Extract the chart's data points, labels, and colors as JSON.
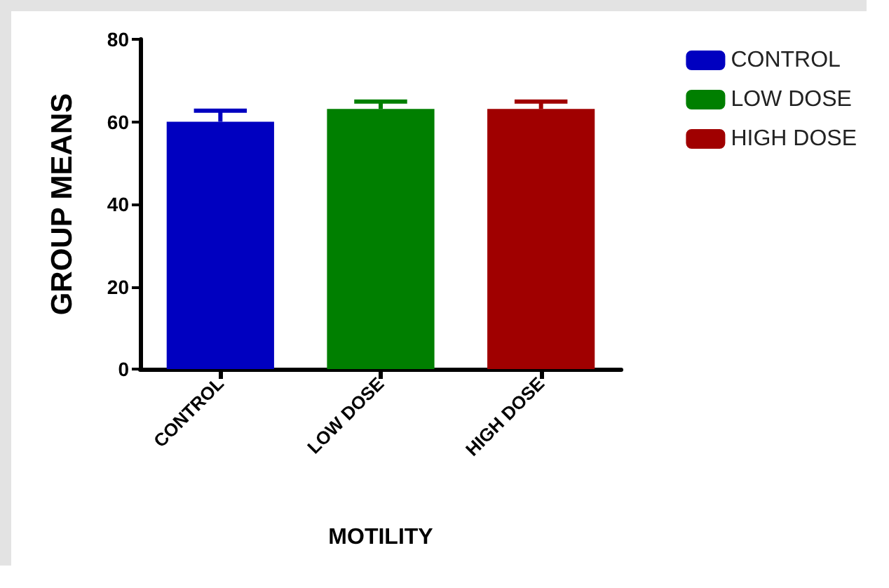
{
  "chart_data": {
    "type": "bar",
    "xlabel": "MOTILITY",
    "ylabel": "GROUP MEANS",
    "categories": [
      "CONTROL",
      "LOW DOSE",
      "HIGH DOSE"
    ],
    "series": [
      {
        "name": "CONTROL",
        "color": "#0000c0",
        "values": [
          60,
          null,
          null
        ],
        "errors": [
          [
            60,
            62.7
          ],
          null,
          null
        ]
      },
      {
        "name": "LOW DOSE",
        "color": "#007f00",
        "values": [
          null,
          63.1,
          null
        ],
        "errors": [
          null,
          [
            63.1,
            64.9
          ],
          null
        ]
      },
      {
        "name": "HIGH DOSE",
        "color": "#a00000",
        "values": [
          null,
          null,
          63.1
        ],
        "errors": [
          null,
          null,
          [
            63.1,
            64.9
          ]
        ]
      }
    ],
    "ylim": [
      0,
      80
    ],
    "yticks": [
      0,
      20,
      40,
      60,
      80
    ],
    "grid": false,
    "legend": "top right"
  }
}
